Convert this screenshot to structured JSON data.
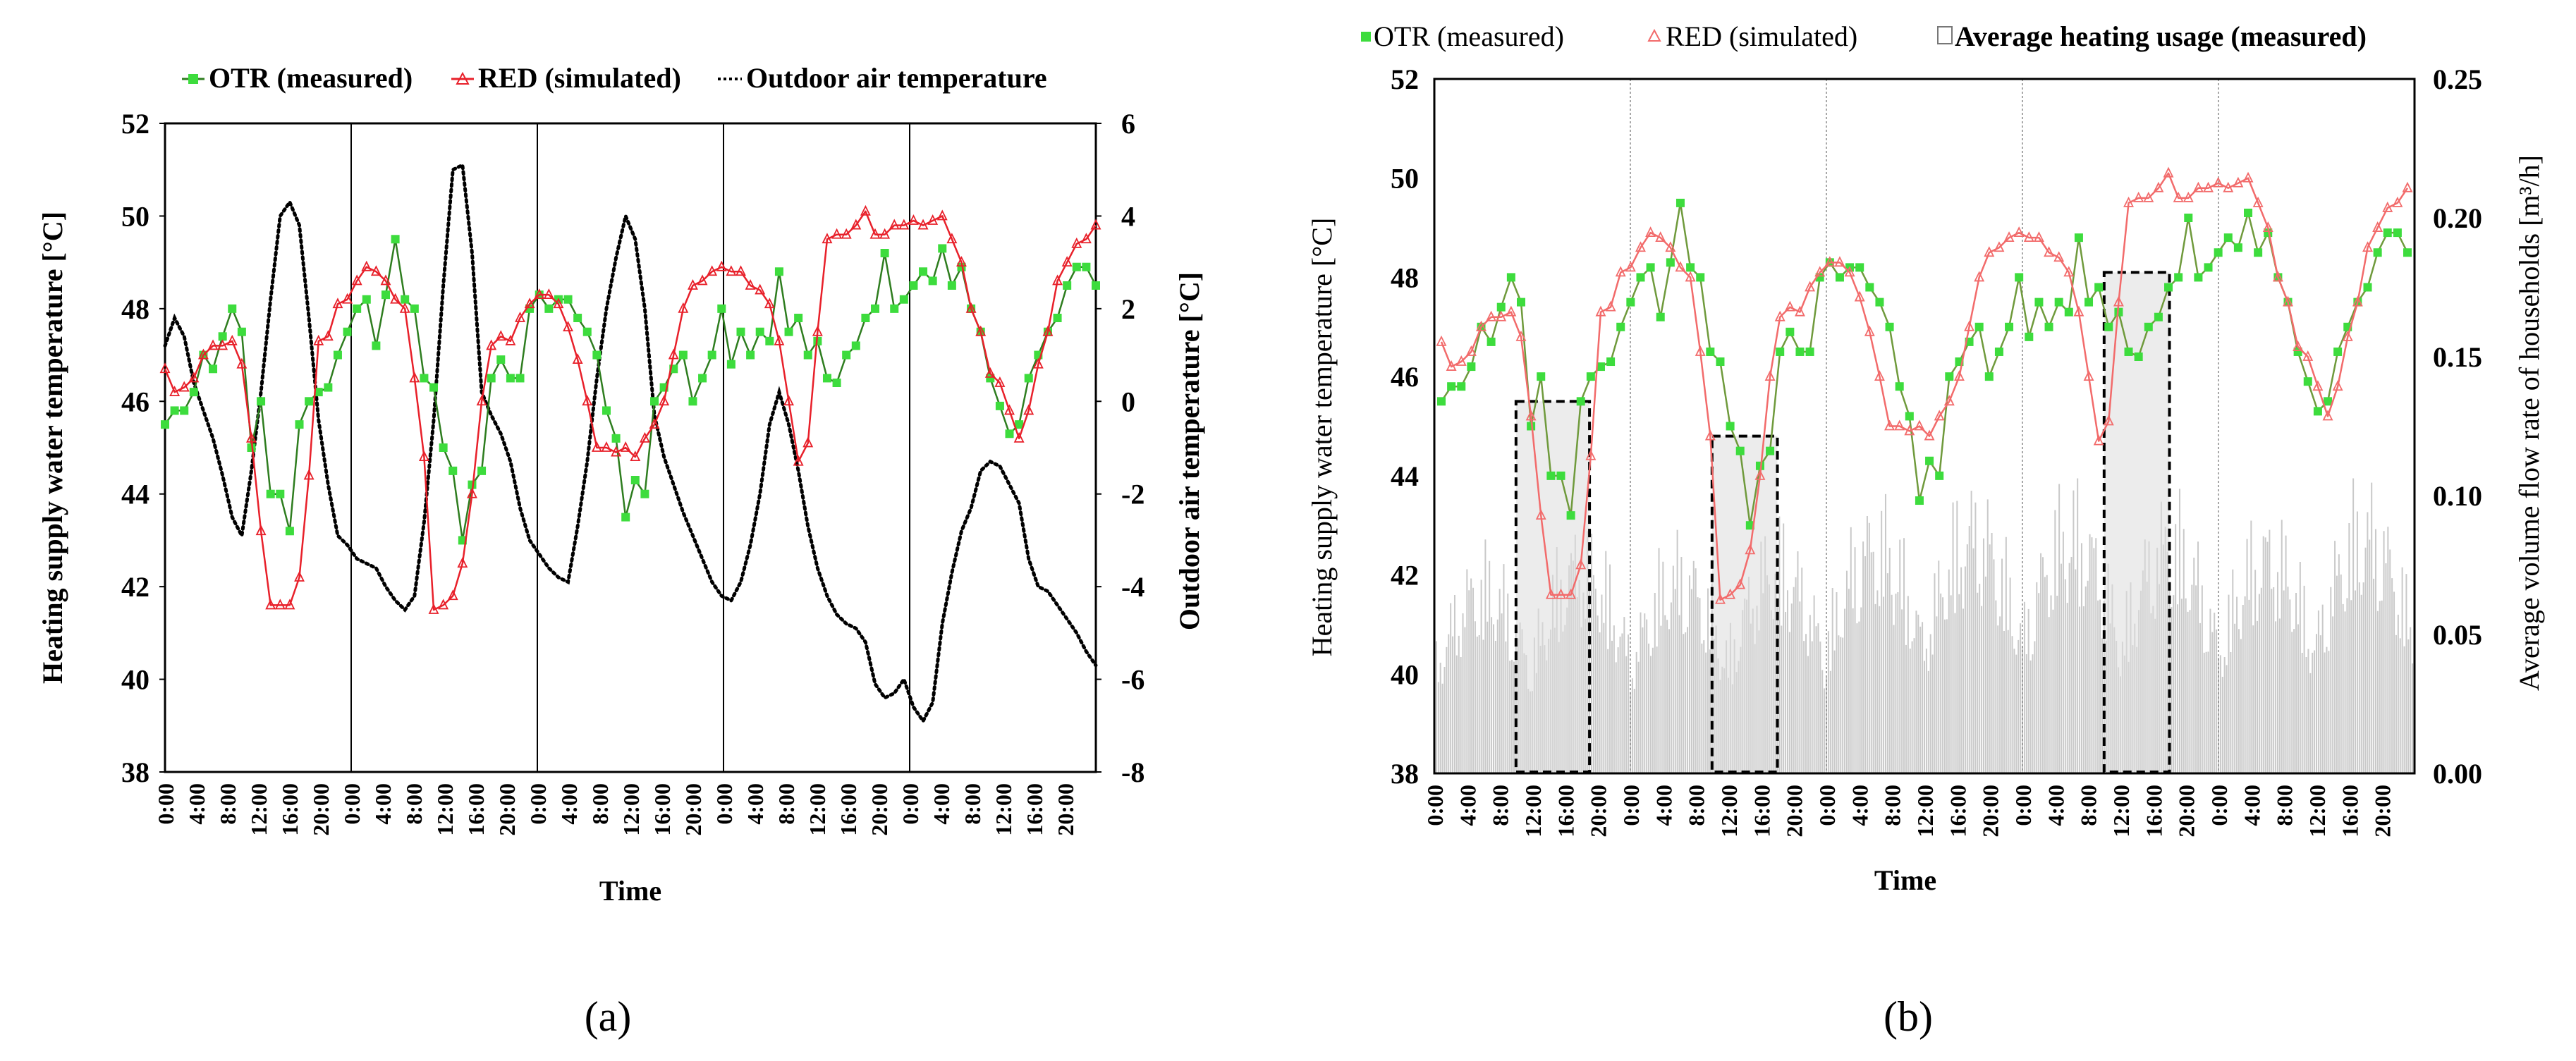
{
  "chart_data": [
    {
      "id": "a",
      "type": "line",
      "panel_label": "(a)",
      "xlabel": "Time",
      "ylabel": "Heating supply water temperature [°C]",
      "ylim": [
        38,
        52
      ],
      "yticks": [
        "38",
        "40",
        "42",
        "44",
        "46",
        "48",
        "50",
        "52"
      ],
      "y2label": "Outdoor air temperature [°C]",
      "y2lim": [
        -8,
        6
      ],
      "y2ticks": [
        "-8",
        "-6",
        "-4",
        "-2",
        "0",
        "2",
        "4",
        "6"
      ],
      "x_ticks_per_day": [
        "0:00",
        "4:00",
        "8:00",
        "12:00",
        "16:00",
        "20:00"
      ],
      "days": 5,
      "legend": [
        {
          "label": "OTR (measured)",
          "color": "#2e7d1f",
          "marker_color": "#3ddc3d"
        },
        {
          "label": "RED (simulated)",
          "color": "#e8202a"
        },
        {
          "label": "Outdoor air temperature",
          "color": "#000000"
        }
      ],
      "series": [
        {
          "name": "OTR (measured)",
          "values": [
            45.5,
            45.8,
            45.8,
            46.2,
            47.0,
            46.7,
            47.4,
            48.0,
            47.5,
            45.0,
            46.0,
            44.0,
            44.0,
            43.2,
            45.5,
            46.0,
            46.2,
            46.3,
            47.0,
            47.5,
            48.0,
            48.2,
            47.2,
            48.3,
            49.5,
            48.2,
            48.0,
            46.5,
            46.3,
            45.0,
            44.5,
            43.0,
            44.2,
            44.5,
            46.5,
            46.9,
            46.5,
            46.5,
            48.0,
            48.3,
            48.0,
            48.2,
            48.2,
            47.8,
            47.5,
            47.0,
            45.8,
            45.2,
            43.5,
            44.3,
            44.0,
            46.0,
            46.3,
            46.7,
            47.0,
            46.0,
            46.5,
            47.0,
            48.0,
            46.8,
            47.5,
            47.0,
            47.5,
            47.3,
            48.8,
            47.5,
            47.8,
            47.0,
            47.3,
            46.5,
            46.4,
            47.0,
            47.2,
            47.8,
            48.0,
            49.2,
            48.0,
            48.2,
            48.5,
            48.8,
            48.6,
            49.3,
            48.5,
            48.9,
            48.0,
            47.5,
            46.5,
            45.9,
            45.3,
            45.5,
            46.5,
            47.0,
            47.5,
            47.8,
            48.5,
            48.9,
            48.9,
            48.5
          ]
        },
        {
          "name": "RED (simulated)",
          "values": [
            46.7,
            46.2,
            46.3,
            46.5,
            47.0,
            47.2,
            47.2,
            47.3,
            46.8,
            45.2,
            43.2,
            41.6,
            41.6,
            41.6,
            42.2,
            44.4,
            47.3,
            47.4,
            48.1,
            48.2,
            48.6,
            48.9,
            48.8,
            48.6,
            48.2,
            48.0,
            46.5,
            44.8,
            41.5,
            41.6,
            41.8,
            42.5,
            44.0,
            46.0,
            47.2,
            47.4,
            47.3,
            47.8,
            48.1,
            48.3,
            48.3,
            48.1,
            47.6,
            46.9,
            46.0,
            45.0,
            45.0,
            44.9,
            45.0,
            44.8,
            45.2,
            45.5,
            46.0,
            47.0,
            48.0,
            48.5,
            48.6,
            48.8,
            48.9,
            48.8,
            48.8,
            48.5,
            48.4,
            48.1,
            47.3,
            46.0,
            44.7,
            45.1,
            47.5,
            49.5,
            49.6,
            49.6,
            49.8,
            50.1,
            49.6,
            49.6,
            49.8,
            49.8,
            49.9,
            49.8,
            49.9,
            50.0,
            49.5,
            49.0,
            48.0,
            47.5,
            46.6,
            46.4,
            45.8,
            45.2,
            45.8,
            46.8,
            47.5,
            48.6,
            49.0,
            49.4,
            49.5,
            49.8
          ]
        },
        {
          "name": "Outdoor air temperature",
          "values": [
            1.2,
            1.8,
            1.4,
            0.4,
            -0.2,
            -0.8,
            -1.6,
            -2.5,
            -2.9,
            -1.5,
            0.2,
            2.2,
            4.0,
            4.3,
            3.8,
            1.8,
            -0.4,
            -1.8,
            -2.9,
            -3.1,
            -3.4,
            -3.5,
            -3.6,
            -4.0,
            -4.3,
            -4.5,
            -4.2,
            -2.6,
            -0.4,
            2.5,
            5.0,
            5.1,
            3.2,
            0.2,
            -0.3,
            -0.7,
            -1.3,
            -2.3,
            -3.0,
            -3.3,
            -3.6,
            -3.8,
            -3.9,
            -2.7,
            -1.3,
            0.5,
            2.0,
            3.1,
            4.0,
            3.5,
            2.0,
            -0.3,
            -1.2,
            -1.8,
            -2.4,
            -2.9,
            -3.4,
            -3.9,
            -4.2,
            -4.3,
            -3.9,
            -3.1,
            -2.0,
            -0.5,
            0.2,
            -0.5,
            -1.5,
            -2.7,
            -3.6,
            -4.2,
            -4.6,
            -4.8,
            -4.9,
            -5.2,
            -6.1,
            -6.4,
            -6.3,
            -6.0,
            -6.6,
            -6.9,
            -6.5,
            -4.8,
            -3.7,
            -2.8,
            -2.3,
            -1.5,
            -1.3,
            -1.4,
            -1.8,
            -2.2,
            -3.4,
            -4.0,
            -4.1,
            -4.4,
            -4.7,
            -5.0,
            -5.4,
            -5.7
          ]
        }
      ]
    },
    {
      "id": "b",
      "type": "line",
      "panel_label": "(b)",
      "xlabel": "Time",
      "ylabel": "Heating supply water temperature [°C]",
      "ylim": [
        38,
        52
      ],
      "yticks": [
        "38",
        "40",
        "42",
        "44",
        "46",
        "48",
        "50",
        "52"
      ],
      "y2label": "Average volume flow rate of households [m³/h]",
      "y2lim": [
        0,
        0.25
      ],
      "y2ticks": [
        "0.00",
        "0.05",
        "0.10",
        "0.15",
        "0.20",
        "0.25"
      ],
      "x_ticks_per_day": [
        "0:00",
        "4:00",
        "8:00",
        "12:00",
        "16:00",
        "20:00"
      ],
      "days": 5,
      "legend": [
        {
          "label": "OTR (measured)",
          "color": "#3ddc3d"
        },
        {
          "label": "RED (simulated)",
          "color": "#f26b6b"
        },
        {
          "label": "Average heating usage (measured)",
          "color": "#bdbdbd"
        }
      ],
      "highlight_boxes": [
        {
          "from_hour": 10,
          "to_hour": 19,
          "y_top": 45.5
        },
        {
          "from_hour": 34,
          "to_hour": 42,
          "y_top": 44.8
        },
        {
          "from_hour": 82,
          "to_hour": 90,
          "y_top": 48.1
        }
      ],
      "series": [
        {
          "name": "OTR (measured)",
          "same_as_panel_a": true
        },
        {
          "name": "RED (simulated)",
          "same_as_panel_a": true
        },
        {
          "name": "Average heating usage (measured)",
          "type": "bar",
          "daily_peaks": [
            0.085,
            0.095,
            0.09,
            0.095,
            0.105,
            0.11,
            0.11,
            0.105,
            0.1,
            0.11
          ]
        }
      ]
    }
  ]
}
